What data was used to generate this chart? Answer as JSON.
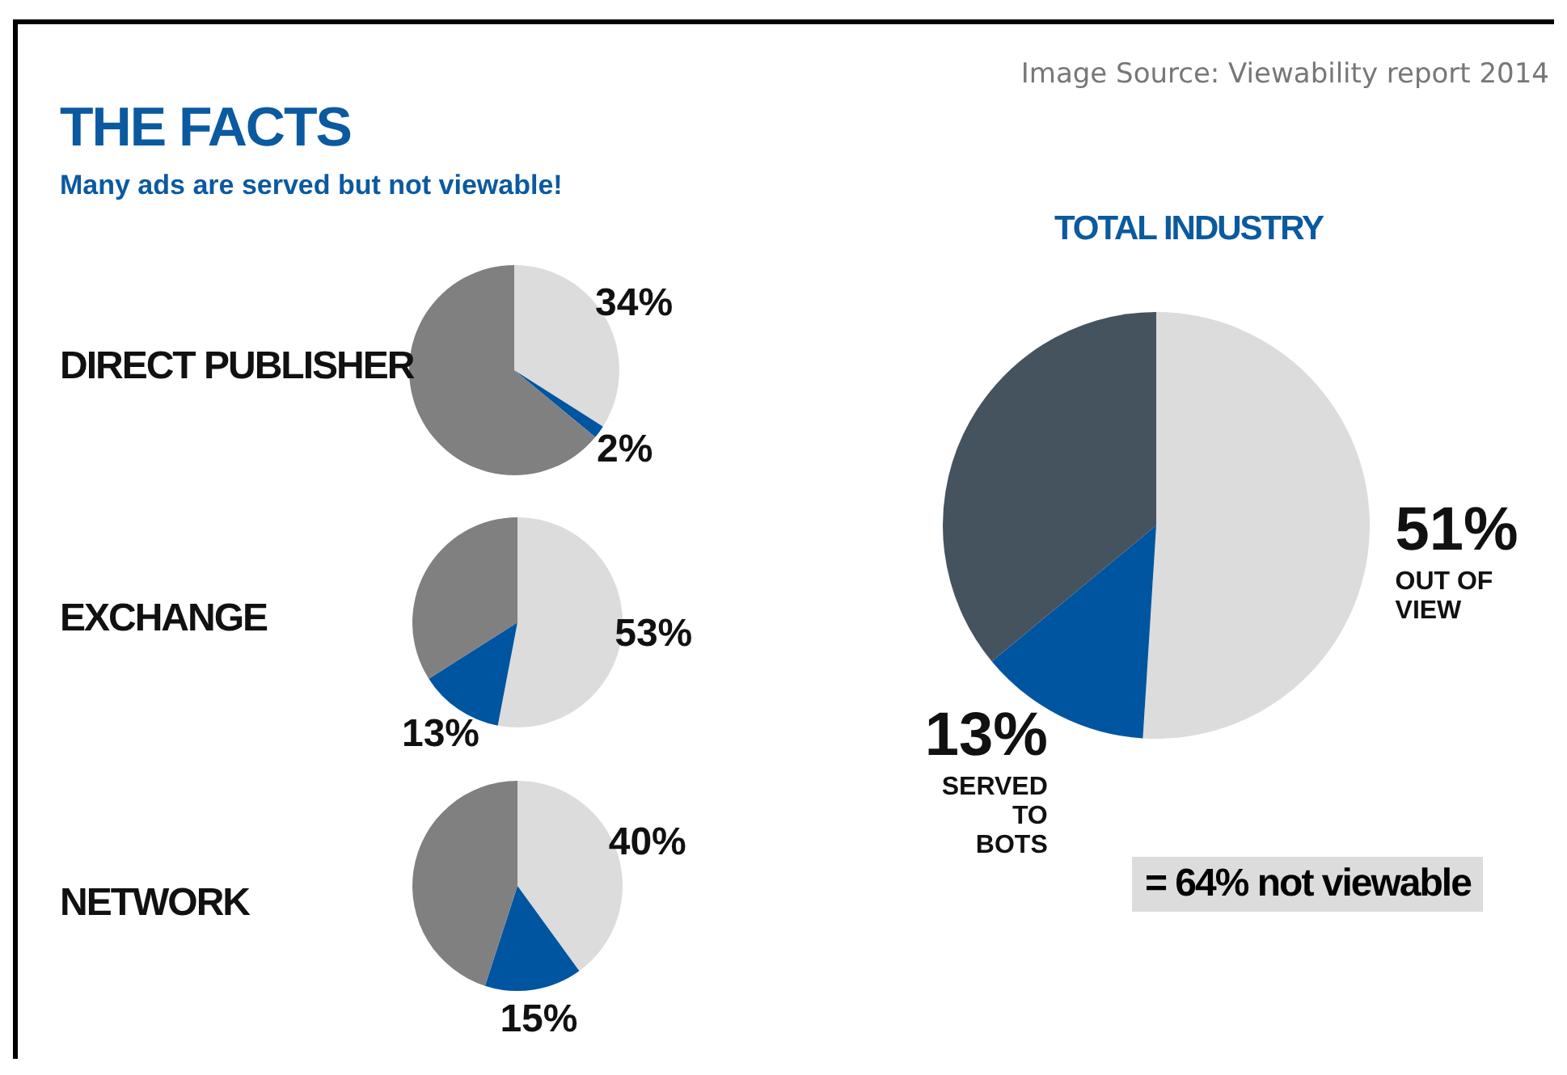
{
  "chart_data": [
    {
      "type": "other",
      "title": "THE FACTS",
      "subtitle": "Many ads are served but not viewable!",
      "annotations": [
        "Image Source: Viewability report 2014"
      ]
    },
    {
      "type": "pie",
      "title": "DIRECT PUBLISHER",
      "categories": [
        null,
        null,
        null
      ],
      "values": [
        34,
        2,
        64
      ],
      "colors": [
        "#dcdcdc",
        "#0055a0",
        "#808080"
      ],
      "value_labels": [
        "34%",
        "2%",
        null
      ]
    },
    {
      "type": "pie",
      "title": "EXCHANGE",
      "categories": [
        null,
        null,
        null
      ],
      "values": [
        53,
        13,
        34
      ],
      "colors": [
        "#dcdcdc",
        "#0055a0",
        "#808080"
      ],
      "value_labels": [
        "53%",
        "13%",
        null
      ]
    },
    {
      "type": "pie",
      "title": "NETWORK",
      "categories": [
        null,
        null,
        null
      ],
      "values": [
        40,
        15,
        45
      ],
      "colors": [
        "#dcdcdc",
        "#0055a0",
        "#808080"
      ],
      "value_labels": [
        "40%",
        "15%",
        null
      ]
    },
    {
      "type": "pie",
      "title": "TOTAL INDUSTRY",
      "categories": [
        "OUT OF VIEW",
        "SERVED TO BOTS",
        null
      ],
      "values": [
        51,
        13,
        36
      ],
      "colors": [
        "#dcdcdc",
        "#0055a0",
        "#45535f"
      ],
      "value_labels": [
        "51%",
        "13%",
        null
      ],
      "annotations": [
        "= 64% not viewable"
      ]
    }
  ]
}
